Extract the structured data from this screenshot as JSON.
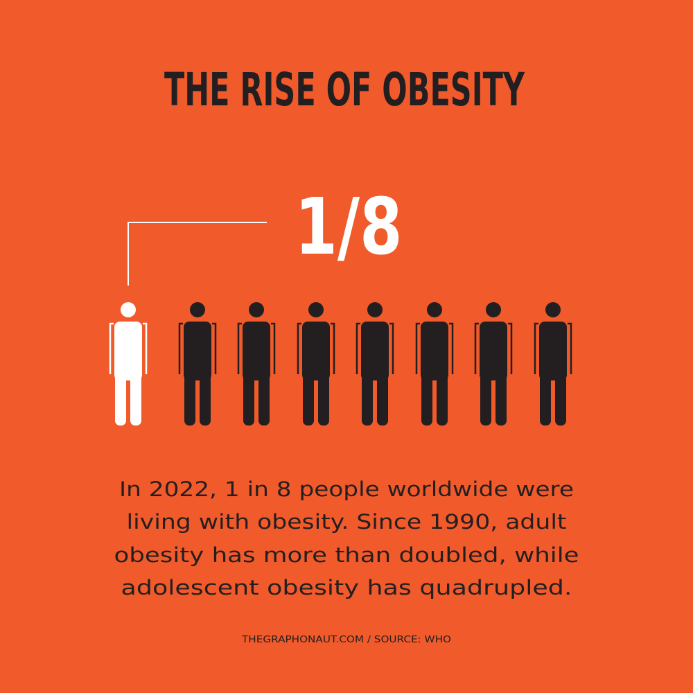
{
  "header": {
    "title": "THE RISE OF OBESITY"
  },
  "stat": {
    "label": "1/8"
  },
  "body": {
    "lines": [
      "In 2022, 1 in 8 people worldwide were",
      "living with obesity. Since 1990, adult",
      "obesity has more than doubled, while",
      "adolescent obesity has quadrupled."
    ]
  },
  "footer": {
    "text": "THEGRAPHONAUT.COM / SOURCE: WHO"
  }
}
